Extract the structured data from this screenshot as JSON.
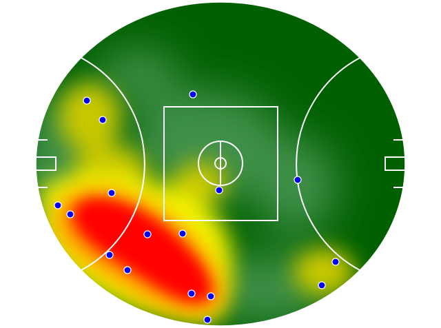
{
  "field": {
    "shape": "oval",
    "colors": {
      "base": "#006000",
      "mid_green": "#3f9048",
      "yellow": "#f4f400",
      "olive": "#c8c800",
      "red": "#ff0000",
      "orange": "#ff8800",
      "lines": "#ffffff",
      "marker_fill": "#0000ee",
      "marker_stroke": "#ffffff"
    }
  },
  "heatmap": {
    "type": "density heatmap with event markers",
    "scale": [
      "dark green",
      "green",
      "yellow",
      "orange",
      "red"
    ]
  }
}
